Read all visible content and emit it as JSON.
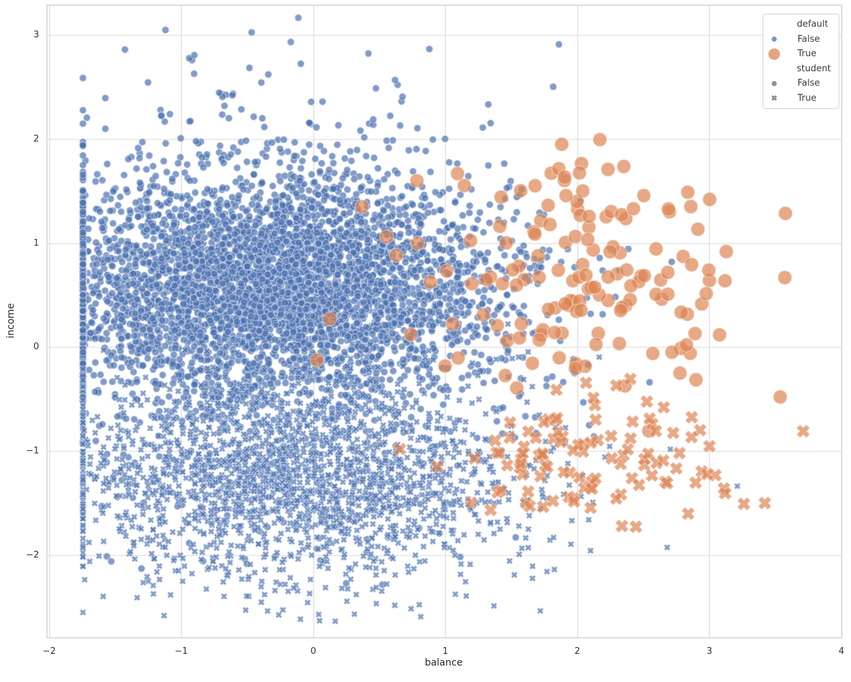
{
  "figure": {
    "background_color": "#ffffff",
    "grid_color": "#d9d9d9",
    "spine_color": "#c9c9c9",
    "text_color": "#262626"
  },
  "legend": {
    "sections": [
      {
        "title": "default",
        "items": [
          {
            "label": "False",
            "marker": "circle",
            "size": "small",
            "color": "#4C72B0"
          },
          {
            "label": "True",
            "marker": "circle",
            "size": "large",
            "color": "#DD8452"
          }
        ]
      },
      {
        "title": "student",
        "items": [
          {
            "label": "False",
            "marker": "circle",
            "size": "small",
            "color": "#848484"
          },
          {
            "label": "True",
            "marker": "x",
            "size": "small",
            "color": "#848484"
          }
        ]
      }
    ]
  },
  "chart_data": {
    "type": "scatter",
    "title": "",
    "xlabel": "balance",
    "ylabel": "income",
    "xlim": [
      -2.02,
      4.0
    ],
    "ylim": [
      -2.79,
      3.29
    ],
    "xticks": [
      -2,
      -1,
      0,
      1,
      2,
      3,
      4
    ],
    "xtick_labels": [
      "−2",
      "−1",
      "0",
      "1",
      "2",
      "3",
      "4"
    ],
    "yticks": [
      -2,
      -1,
      0,
      1,
      2,
      3
    ],
    "ytick_labels": [
      "−2",
      "−1",
      "0",
      "1",
      "2",
      "3"
    ],
    "grid": true,
    "legend_position": "upper right",
    "hue_variable": "default",
    "style_variable": "student",
    "point_alpha": 0.7,
    "point_edge_color": "#ffffff",
    "zero_balance_stripe_x": -1.745,
    "seed": 7,
    "series": [
      {
        "name": "default=False, student=False",
        "default": "False",
        "student": "False",
        "marker": "circle",
        "color": "#4C72B0",
        "radius_px": 5.2,
        "count": 5000,
        "x_dist": {
          "mean": -0.3,
          "sd": 0.85,
          "floor": -1.745,
          "max": 3.9
        },
        "y_dist": {
          "components": [
            {
              "w": 0.75,
              "mean": 0.6,
              "sd": 0.5
            },
            {
              "w": 0.25,
              "mean": 0.35,
              "sd": 1.05
            }
          ],
          "min": -2.3,
          "max": 3.2
        }
      },
      {
        "name": "default=False, student=True",
        "default": "False",
        "student": "True",
        "marker": "x",
        "color": "#4C72B0",
        "radius_px": 5.0,
        "count": 2100,
        "x_dist": {
          "mean": -0.12,
          "sd": 0.86,
          "floor": -1.745,
          "max": 3.6
        },
        "y_dist": {
          "components": [
            {
              "w": 0.8,
              "mean": -1.25,
              "sd": 0.42
            },
            {
              "w": 0.2,
              "mean": -1.35,
              "sd": 0.8
            }
          ],
          "min": -2.65,
          "max": 0.3
        }
      },
      {
        "name": "default=True, student=False",
        "default": "True",
        "student": "False",
        "marker": "circle",
        "color": "#DD8452",
        "radius_px": 10.3,
        "count": 152,
        "x_dist": {
          "components": [
            {
              "w": 0.93,
              "mean": 2.1,
              "sd": 0.56
            },
            {
              "w": 0.07,
              "mean": 0.55,
              "sd": 0.45
            }
          ],
          "floor": -1.0,
          "max": 3.9
        },
        "y_dist": {
          "mean": 0.65,
          "sd": 0.63,
          "min": -0.85,
          "max": 2.55
        }
      },
      {
        "name": "default=True, student=True",
        "default": "True",
        "student": "True",
        "marker": "x",
        "color": "#DD8452",
        "radius_px": 10.0,
        "count": 108,
        "x_dist": {
          "components": [
            {
              "w": 0.95,
              "mean": 2.2,
              "sd": 0.54
            },
            {
              "w": 0.05,
              "mean": 1.3,
              "sd": 0.35
            }
          ],
          "floor": 0.5,
          "max": 3.9
        },
        "y_dist": {
          "mean": -1.05,
          "sd": 0.36,
          "min": -1.85,
          "max": -0.3
        }
      }
    ]
  }
}
